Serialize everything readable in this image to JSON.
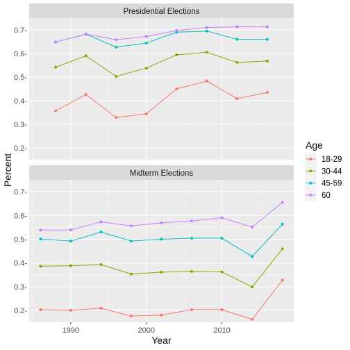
{
  "chart_data": {
    "type": "line",
    "xlabel": "Year",
    "ylabel": "Percent",
    "xlim": [
      1984.5,
      2019.5
    ],
    "ylim": [
      0.15,
      0.75
    ],
    "xticks": [
      1990,
      2000,
      2010
    ],
    "xtick_labels": [
      "1990",
      "2000",
      "2010"
    ],
    "yticks": [
      0.2,
      0.3,
      0.4,
      0.5,
      0.6,
      0.7
    ],
    "ytick_labels": [
      "0.2-",
      "0.3-",
      "0.4-",
      "0.5-",
      "0.6-",
      "0.7-"
    ],
    "grid": true,
    "legend": {
      "title": "Age",
      "position": "right",
      "entries": [
        "18-29",
        "30-44",
        "45-59",
        "60"
      ]
    },
    "colors": {
      "18-29": "#F8766D",
      "30-44": "#7CAE00",
      "45-59": "#00BFC4",
      "60": "#C77CFF"
    },
    "panels": [
      {
        "title": "Presidential Elections",
        "series": [
          {
            "name": "18-29",
            "x": [
              1988,
              1992,
              1996,
              2000,
              2004,
              2008,
              2012,
              2016
            ],
            "y": [
              0.357,
              0.426,
              0.329,
              0.344,
              0.45,
              0.483,
              0.409,
              0.435
            ]
          },
          {
            "name": "30-44",
            "x": [
              1988,
              1992,
              1996,
              2000,
              2004,
              2008,
              2012,
              2016
            ],
            "y": [
              0.542,
              0.59,
              0.503,
              0.538,
              0.594,
              0.605,
              0.562,
              0.568
            ]
          },
          {
            "name": "45-59",
            "x": [
              1988,
              1992,
              1996,
              2000,
              2004,
              2008,
              2012,
              2016
            ],
            "y": [
              0.648,
              0.682,
              0.627,
              0.644,
              0.69,
              0.695,
              0.66,
              0.66
            ]
          },
          {
            "name": "60",
            "x": [
              1988,
              1992,
              1996,
              2000,
              2004,
              2008,
              2012,
              2016
            ],
            "y": [
              0.648,
              0.682,
              0.658,
              0.672,
              0.697,
              0.71,
              0.713,
              0.713
            ]
          }
        ]
      },
      {
        "title": "Midterm Elections",
        "series": [
          {
            "name": "18-29",
            "x": [
              1986,
              1990,
              1994,
              1998,
              2002,
              2006,
              2010,
              2014,
              2018
            ],
            "y": [
              0.203,
              0.2,
              0.209,
              0.176,
              0.18,
              0.203,
              0.203,
              0.162,
              0.327
            ]
          },
          {
            "name": "30-44",
            "x": [
              1986,
              1990,
              1994,
              1998,
              2002,
              2006,
              2010,
              2014,
              2018
            ],
            "y": [
              0.386,
              0.388,
              0.393,
              0.353,
              0.361,
              0.364,
              0.362,
              0.299,
              0.459
            ]
          },
          {
            "name": "45-59",
            "x": [
              1986,
              1990,
              1994,
              1998,
              2002,
              2006,
              2010,
              2014,
              2018
            ],
            "y": [
              0.501,
              0.492,
              0.53,
              0.492,
              0.5,
              0.504,
              0.504,
              0.427,
              0.563
            ]
          },
          {
            "name": "60",
            "x": [
              1986,
              1990,
              1994,
              1998,
              2002,
              2006,
              2010,
              2014,
              2018
            ],
            "y": [
              0.538,
              0.539,
              0.573,
              0.556,
              0.569,
              0.577,
              0.59,
              0.551,
              0.655
            ]
          }
        ]
      }
    ]
  }
}
